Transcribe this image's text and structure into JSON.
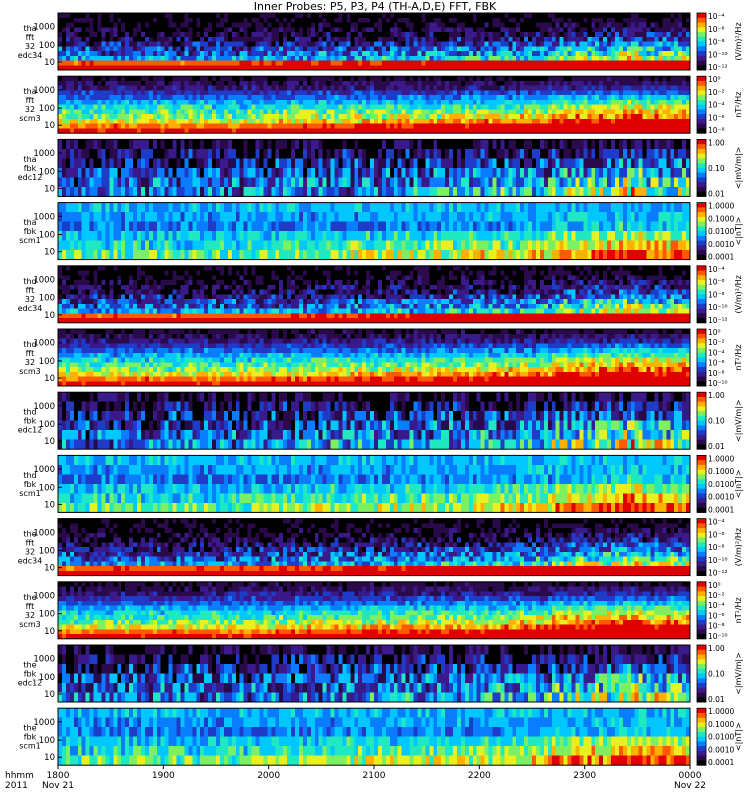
{
  "chart_data": {
    "type": "heatmap",
    "title": "Inner Probes: P5, P3, P4 (TH-A,D,E) FFT, FBK",
    "x_axis": {
      "label_line1": "hhmm",
      "label_line2": "2011",
      "ticks": [
        "1800",
        "1900",
        "2000",
        "2100",
        "2200",
        "2300",
        "0000"
      ],
      "date_labels": [
        "Nov 21",
        "Nov 22"
      ]
    },
    "panels": [
      {
        "probe": "tha",
        "type_label": "fft",
        "sub_label": "32",
        "instrument": "edc34",
        "kind": "fft_e",
        "yticks": [
          "1000",
          "100",
          "10"
        ],
        "unit": "(V/m)²/Hz",
        "cbar_ticks": [
          "10⁻⁴",
          "10⁻⁶",
          "10⁻⁸",
          "10⁻¹⁰",
          "10⁻¹²"
        ]
      },
      {
        "probe": "tha",
        "type_label": "fft",
        "sub_label": "32",
        "instrument": "scm3",
        "kind": "fft_b",
        "yticks": [
          "1000",
          "100",
          "10"
        ],
        "unit": "nT²/Hz",
        "cbar_ticks": [
          "10⁰",
          "10⁻²",
          "10⁻⁴",
          "10⁻⁶",
          "10⁻⁸"
        ]
      },
      {
        "probe": "tha",
        "type_label": "fbk",
        "sub_label": "",
        "instrument": "edc12",
        "kind": "fbk_e",
        "yticks": [
          "1000",
          "100",
          "10"
        ],
        "unit": "<|mV/m|>",
        "cbar_ticks": [
          "1.00",
          "0.10",
          "0.01"
        ]
      },
      {
        "probe": "tha",
        "type_label": "fbk",
        "sub_label": "",
        "instrument": "scm1",
        "kind": "fbk_b",
        "yticks": [
          "1000",
          "100",
          "10"
        ],
        "unit": "<|nT|>",
        "cbar_ticks": [
          "1.0000",
          "0.1000",
          "0.0100",
          "0.0010",
          "0.0001"
        ]
      },
      {
        "probe": "thd",
        "type_label": "fft",
        "sub_label": "32",
        "instrument": "edc34",
        "kind": "fft_e",
        "yticks": [
          "1000",
          "100",
          "10"
        ],
        "unit": "(V/m)²/Hz",
        "cbar_ticks": [
          "10⁻⁴",
          "10⁻⁶",
          "10⁻⁸",
          "10⁻¹⁰",
          "10⁻¹²"
        ]
      },
      {
        "probe": "thd",
        "type_label": "fft",
        "sub_label": "32",
        "instrument": "scm3",
        "kind": "fft_b",
        "yticks": [
          "1000",
          "100",
          "10"
        ],
        "unit": "nT²/Hz",
        "cbar_ticks": [
          "10⁰",
          "10⁻²",
          "10⁻⁴",
          "10⁻⁶",
          "10⁻⁸",
          "10⁻¹⁰"
        ]
      },
      {
        "probe": "thd",
        "type_label": "fbk",
        "sub_label": "",
        "instrument": "edc12",
        "kind": "fbk_e",
        "yticks": [
          "1000",
          "100",
          "10"
        ],
        "unit": "<|mV/m|>",
        "cbar_ticks": [
          "1.00",
          "0.10",
          "0.01"
        ]
      },
      {
        "probe": "thd",
        "type_label": "fbk",
        "sub_label": "",
        "instrument": "scm1",
        "kind": "fbk_b",
        "yticks": [
          "1000",
          "100",
          "10"
        ],
        "unit": "<|nT|>",
        "cbar_ticks": [
          "1.0000",
          "0.1000",
          "0.0100",
          "0.0010",
          "0.0001"
        ]
      },
      {
        "probe": "the",
        "type_label": "fft",
        "sub_label": "32",
        "instrument": "edc34",
        "kind": "fft_e",
        "yticks": [
          "1000",
          "100",
          "10"
        ],
        "unit": "(V/m)²/Hz",
        "cbar_ticks": [
          "10⁻⁴",
          "10⁻⁶",
          "10⁻⁸",
          "10⁻¹⁰",
          "10⁻¹²"
        ]
      },
      {
        "probe": "the",
        "type_label": "fft",
        "sub_label": "32",
        "instrument": "scm3",
        "kind": "fft_b",
        "yticks": [
          "1000",
          "100",
          "10"
        ],
        "unit": "nT²/Hz",
        "cbar_ticks": [
          "10⁰",
          "10⁻²",
          "10⁻⁴",
          "10⁻⁶",
          "10⁻⁸",
          "10⁻¹⁰"
        ]
      },
      {
        "probe": "the",
        "type_label": "fbk",
        "sub_label": "",
        "instrument": "edc12",
        "kind": "fbk_e",
        "yticks": [
          "1000",
          "100",
          "10"
        ],
        "unit": "<|mV/m|>",
        "cbar_ticks": [
          "1.00",
          "0.10",
          "0.01"
        ]
      },
      {
        "probe": "the",
        "type_label": "fbk",
        "sub_label": "",
        "instrument": "scm1",
        "kind": "fbk_b",
        "yticks": [
          "1000",
          "100",
          "10"
        ],
        "unit": "<|nT|>",
        "cbar_ticks": [
          "1.0000",
          "0.1000",
          "0.0100",
          "0.0010",
          "0.0001"
        ]
      }
    ],
    "colormap": [
      "#000000",
      "#2a0a4a",
      "#3a1a8a",
      "#1e3cc8",
      "#0a7cff",
      "#00c8ff",
      "#20e8c0",
      "#7cf060",
      "#e8f020",
      "#ffb000",
      "#ff5a00",
      "#e00000"
    ]
  }
}
